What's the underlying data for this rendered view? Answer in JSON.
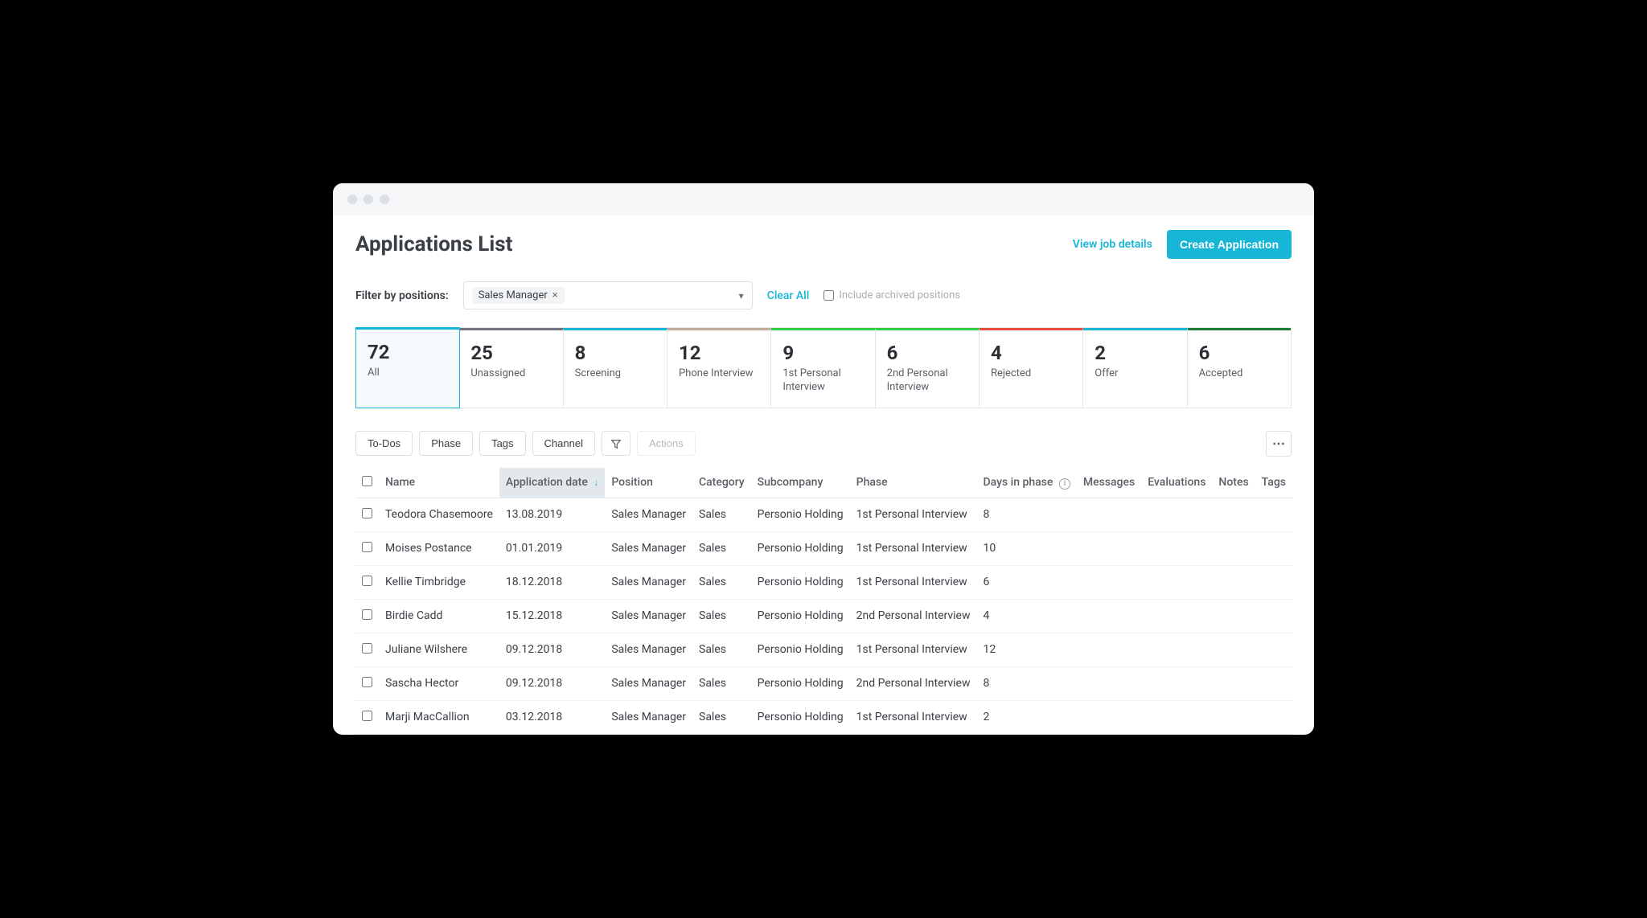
{
  "header": {
    "title": "Applications List",
    "view_details": "View job details",
    "create_btn": "Create Application"
  },
  "filter": {
    "label": "Filter by positions:",
    "chip": "Sales Manager",
    "clear": "Clear All",
    "archived_label": "Include archived positions"
  },
  "stages": [
    {
      "count": "72",
      "label": "All",
      "color": "#18b6d6",
      "active": true
    },
    {
      "count": "25",
      "label": "Unassigned",
      "color": "#6f757b",
      "active": false
    },
    {
      "count": "8",
      "label": "Screening",
      "color": "#18b6d6",
      "active": false
    },
    {
      "count": "12",
      "label": "Phone Interview",
      "color": "#bfaea0",
      "active": false
    },
    {
      "count": "9",
      "label": "1st Personal Interview",
      "color": "#2ecc40",
      "active": false
    },
    {
      "count": "6",
      "label": "2nd Personal Interview",
      "color": "#2ecc40",
      "active": false
    },
    {
      "count": "4",
      "label": "Rejected",
      "color": "#e74c3c",
      "active": false
    },
    {
      "count": "2",
      "label": "Offer",
      "color": "#18b6d6",
      "active": false
    },
    {
      "count": "6",
      "label": "Accepted",
      "color": "#1e7e34",
      "active": false
    }
  ],
  "toolbar": {
    "todos": "To-Dos",
    "phase": "Phase",
    "tags": "Tags",
    "channel": "Channel",
    "actions": "Actions"
  },
  "columns": {
    "name": "Name",
    "appdate": "Application date",
    "position": "Position",
    "category": "Category",
    "subcompany": "Subcompany",
    "phase": "Phase",
    "days": "Days in phase",
    "messages": "Messages",
    "evaluations": "Evaluations",
    "notes": "Notes",
    "tags": "Tags"
  },
  "rows": [
    {
      "name": "Teodora Chasemoore",
      "date": "13.08.2019",
      "position": "Sales Manager",
      "category": "Sales",
      "subcompany": "Personio Holding",
      "phase": "1st Personal Interview",
      "days": "8"
    },
    {
      "name": "Moises Postance",
      "date": "01.01.2019",
      "position": "Sales Manager",
      "category": "Sales",
      "subcompany": "Personio Holding",
      "phase": "1st Personal Interview",
      "days": "10"
    },
    {
      "name": "Kellie Timbridge",
      "date": "18.12.2018",
      "position": "Sales Manager",
      "category": "Sales",
      "subcompany": "Personio Holding",
      "phase": "1st Personal Interview",
      "days": "6"
    },
    {
      "name": "Birdie Cadd",
      "date": "15.12.2018",
      "position": "Sales Manager",
      "category": "Sales",
      "subcompany": "Personio Holding",
      "phase": "2nd Personal Interview",
      "days": "4"
    },
    {
      "name": "Juliane Wilshere",
      "date": "09.12.2018",
      "position": "Sales Manager",
      "category": "Sales",
      "subcompany": "Personio Holding",
      "phase": "1st Personal Interview",
      "days": "12"
    },
    {
      "name": "Sascha Hector",
      "date": "09.12.2018",
      "position": "Sales Manager",
      "category": "Sales",
      "subcompany": "Personio Holding",
      "phase": "2nd Personal Interview",
      "days": "8"
    },
    {
      "name": "Marji MacCallion",
      "date": "03.12.2018",
      "position": "Sales Manager",
      "category": "Sales",
      "subcompany": "Personio Holding",
      "phase": "1st Personal Interview",
      "days": "2"
    }
  ]
}
